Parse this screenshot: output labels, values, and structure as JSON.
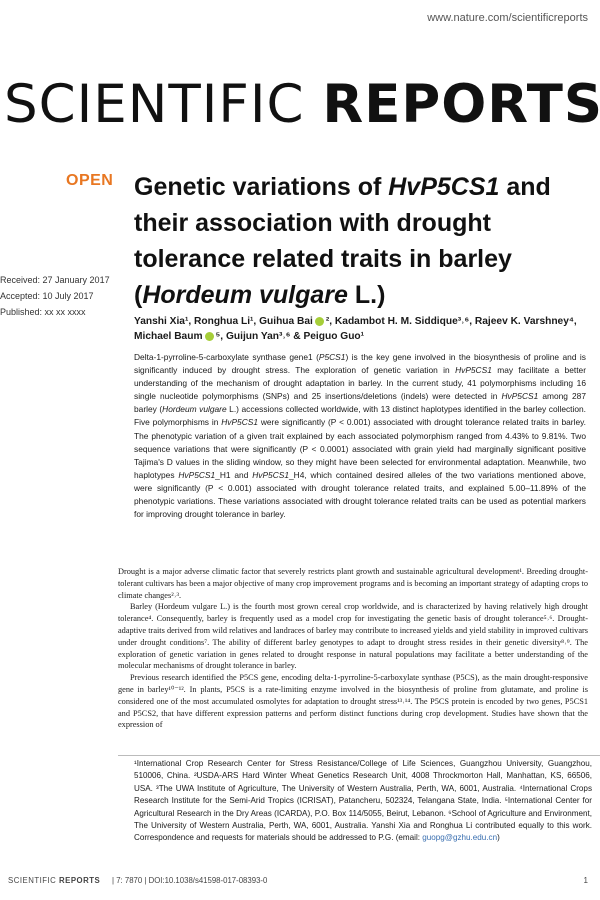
{
  "header": {
    "url": "www.nature.com/scientificreports",
    "journal_light": "SCIENTIFIC ",
    "journal_bold": "REPORTS"
  },
  "article": {
    "open_label": "OPEN",
    "title_1": "Genetic variations of ",
    "title_gene": "HvP5CS1",
    "title_2": " and their association with drought tolerance related traits in barley (",
    "title_species": "Hordeum vulgare",
    "title_3": " L.)",
    "received": "Received: 27 January 2017",
    "accepted": "Accepted: 10 July 2017",
    "published": "Published: xx xx xxxx",
    "authors_1": "Yanshi Xia¹, Ronghua Li¹, Guihua Bai",
    "authors_2": "², Kadambot H. M. Siddique³˒⁶, Rajeev K. Varshney⁴, Michael Baum",
    "authors_3": "⁵, Guijun Yan³˒⁶ & Peiguo Guo¹"
  },
  "abstract": {
    "s1": "Delta-1-pyrroline-5-carboxylate synthase gene1 (",
    "g1": "P5CS1",
    "s2": ") is the key gene involved in the biosynthesis of proline and is significantly induced by drought stress. The exploration of genetic variation in ",
    "g2": "HvP5CS1",
    "s3": " may facilitate a better understanding of the mechanism of drought adaptation in barley. In the current study, 41 polymorphisms including 16 single nucleotide polymorphisms (SNPs) and 25 insertions/deletions (indels) were detected in ",
    "g3": "HvP5CS1",
    "s4": " among 287 barley (",
    "g4": "Hordeum vulgare",
    "s5": " L.) accessions collected worldwide, with 13 distinct haplotypes identified in the barley collection. Five polymorphisms in ",
    "g5": "HvP5CS1",
    "s6": " were significantly (P < 0.001) associated with drought tolerance related traits in barley. The phenotypic variation of a given trait explained by each associated polymorphism ranged from 4.43% to 9.81%. Two sequence variations that were significantly (P < 0.0001) associated with grain yield had marginally significant positive Tajima's D values in the sliding window, so they might have been selected for environmental adaptation. Meanwhile, two haplotypes ",
    "g6": "HvP5CS1",
    "s7": "_H1 and ",
    "g7": "HvP5CS1",
    "s8": "_H4, which contained desired alleles of the two variations mentioned above, were significantly (P < 0.001) associated with drought tolerance related traits, and explained 5.00–11.89% of the phenotypic variations. These variations associated with drought tolerance related traits can be used as potential markers for improving drought tolerance in barley."
  },
  "body": {
    "p1": "Drought is a major adverse climatic factor that severely restricts plant growth and sustainable agricultural development¹. Breeding drought-tolerant cultivars has been a major objective of many crop improvement programs and is becoming an important strategy of adapting crops to climate changes²˒³.",
    "p2": "Barley (Hordeum vulgare L.) is the fourth most grown cereal crop worldwide, and is characterized by having relatively high drought tolerance⁴. Consequently, barley is frequently used as a model crop for investigating the genetic basis of drought tolerance⁵˒⁶. Drought-adaptive traits derived from wild relatives and landraces of barley may contribute to increased yields and yield stability in improved cultivars under drought conditions⁷. The ability of different barley genotypes to adapt to drought stress resides in their genetic diversity⁸˒⁹. The exploration of genetic variation in genes related to drought response in natural populations may facilitate a better understanding of the molecular mechanisms of drought tolerance in barley.",
    "p3": "Previous research identified the P5CS gene, encoding delta-1-pyrroline-5-carboxylate synthase (P5CS), as the main drought-responsive gene in barley¹⁰⁻¹². In plants, P5CS is a rate-limiting enzyme involved in the biosynthesis of proline from glutamate, and proline is considered one of the most accumulated osmolytes for adaptation to drought stress¹³˒¹⁴. The P5CS protein is encoded by two genes, P5CS1 and P5CS2, that have different expression patterns and perform distinct functions during crop development. Studies have shown that the expression of"
  },
  "affiliations": {
    "text": "¹International Crop Research Center for Stress Resistance/College of Life Sciences, Guangzhou University, Guangzhou, 510006, China. ²USDA-ARS Hard Winter Wheat Genetics Research Unit, 4008 Throckmorton Hall, Manhattan, KS, 66506, USA. ³The UWA Institute of Agriculture, The University of Western Australia, Perth, WA, 6001, Australia. ⁴International Crops Research Institute for the Semi-Arid Tropics (ICRISAT), Patancheru, 502324, Telangana State, India. ⁵International Center for Agricultural Research in the Dry Areas (ICARDA), P.O. Box 114/5055, Beirut, Lebanon. ⁶School of Agriculture and Environment, The University of Western Australia, Perth, WA, 6001, Australia. Yanshi Xia and Ronghua Li contributed equally to this work. Correspondence and requests for materials should be addressed to P.G. (email: ",
    "email": "guopg@gzhu.edu.cn",
    "close": ")"
  },
  "footer": {
    "journal_light": "SCIENTIFIC ",
    "journal_bold": "REPORTS",
    "citation": "| 7: 7870 | DOI:10.1038/s41598-017-08393-0",
    "page": "1"
  },
  "colors": {
    "open_orange": "#e87722",
    "orcid_green": "#a6ce39",
    "link_blue": "#3a6fb0"
  },
  "icons": [
    "orcid-icon"
  ]
}
